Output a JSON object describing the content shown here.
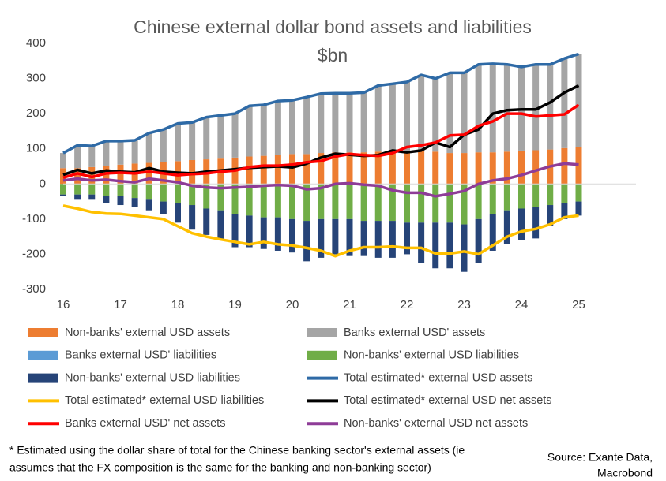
{
  "chart_data": {
    "type": "bar",
    "title": [
      "Chinese external dollar bond assets and liabilities",
      "$bn"
    ],
    "x": [
      16,
      16.25,
      16.5,
      16.75,
      17,
      17.25,
      17.5,
      17.75,
      18,
      18.25,
      18.5,
      18.75,
      19,
      19.25,
      19.5,
      19.75,
      20,
      20.25,
      20.5,
      20.75,
      21,
      21.25,
      21.5,
      21.75,
      22,
      22.25,
      22.5,
      22.75,
      23,
      23.25,
      23.5,
      23.75,
      24,
      24.25,
      24.5,
      24.75,
      25
    ],
    "xlim": [
      16,
      26
    ],
    "xticks": [
      16,
      17,
      18,
      19,
      20,
      21,
      22,
      23,
      24,
      25
    ],
    "ylim": [
      -300,
      400
    ],
    "yticks": [
      -300,
      -200,
      -100,
      0,
      100,
      200,
      300,
      400
    ],
    "series": [
      {
        "name": "Non-banks' external USD assets",
        "type": "bar",
        "color": "#ed7d31",
        "values": [
          45,
          45,
          48,
          52,
          55,
          58,
          60,
          62,
          65,
          68,
          70,
          72,
          75,
          78,
          80,
          82,
          85,
          85,
          88,
          90,
          90,
          90,
          92,
          92,
          95,
          95,
          92,
          88,
          88,
          90,
          90,
          92,
          95,
          96,
          98,
          102,
          104
        ]
      },
      {
        "name": "Banks external USD' assets",
        "type": "bar",
        "color": "#a5a5a5",
        "values": [
          43,
          65,
          60,
          70,
          67,
          66,
          85,
          93,
          107,
          107,
          120,
          123,
          125,
          144,
          145,
          154,
          153,
          162,
          169,
          168,
          168,
          170,
          188,
          193,
          195,
          215,
          208,
          228,
          228,
          250,
          252,
          248,
          238,
          244,
          242,
          255,
          266
        ]
      },
      {
        "name": "Banks external USD' liabilities",
        "type": "bar",
        "color": "#5b9bd5",
        "values": [
          0,
          0,
          0,
          0,
          0,
          0,
          0,
          0,
          0,
          0,
          0,
          0,
          0,
          0,
          0,
          0,
          0,
          0,
          0,
          0,
          0,
          0,
          0,
          0,
          0,
          0,
          0,
          0,
          0,
          0,
          0,
          0,
          0,
          0,
          0,
          0,
          0
        ]
      },
      {
        "name": "Non-banks' external USD liabilities",
        "type": "bar",
        "color": "#70ad47",
        "values": [
          -30,
          -30,
          -30,
          -35,
          -35,
          -40,
          -45,
          -50,
          -55,
          -60,
          -70,
          -75,
          -85,
          -90,
          -95,
          -95,
          -100,
          -105,
          -100,
          -100,
          -100,
          -105,
          -105,
          -105,
          -110,
          -110,
          -110,
          -110,
          -115,
          -100,
          -85,
          -75,
          -70,
          -65,
          -60,
          -55,
          -50
        ]
      },
      {
        "name": "Non-banks' external USD liabilities",
        "type": "bar",
        "color": "#264478",
        "values": [
          -5,
          -15,
          -15,
          -20,
          -25,
          -25,
          -30,
          -35,
          -55,
          -70,
          -75,
          -85,
          -95,
          -90,
          -90,
          -95,
          -95,
          -115,
          -110,
          -100,
          -105,
          -100,
          -105,
          -105,
          -90,
          -115,
          -130,
          -130,
          -135,
          -125,
          -105,
          -95,
          -90,
          -90,
          -60,
          -45,
          -40
        ]
      },
      {
        "name": "Total estimated* external USD assets",
        "type": "line",
        "color": "#2e6aa6",
        "values": [
          88,
          110,
          108,
          122,
          122,
          124,
          145,
          155,
          172,
          175,
          190,
          195,
          200,
          222,
          225,
          236,
          238,
          247,
          257,
          258,
          258,
          260,
          280,
          285,
          290,
          310,
          300,
          316,
          316,
          340,
          342,
          340,
          333,
          340,
          340,
          357,
          370
        ]
      },
      {
        "name": "Total estimated* external USD liabilities",
        "type": "line",
        "color": "#ffc000",
        "values": [
          -62,
          -70,
          -80,
          -84,
          -85,
          -90,
          -95,
          -100,
          -120,
          -140,
          -150,
          -158,
          -165,
          -172,
          -165,
          -172,
          -175,
          -182,
          -190,
          -205,
          -190,
          -180,
          -180,
          -178,
          -182,
          -182,
          -198,
          -198,
          -192,
          -200,
          -175,
          -150,
          -135,
          -128,
          -115,
          -95,
          -90
        ]
      },
      {
        "name": "Total estimated* external USD net assets",
        "type": "line",
        "color": "#000000",
        "values": [
          26,
          40,
          30,
          38,
          35,
          33,
          45,
          35,
          32,
          30,
          35,
          38,
          42,
          46,
          48,
          50,
          47,
          58,
          75,
          86,
          83,
          80,
          82,
          95,
          90,
          95,
          118,
          105,
          140,
          155,
          200,
          210,
          212,
          212,
          232,
          260,
          280
        ]
      },
      {
        "name": "Banks external USD' net assets",
        "type": "line",
        "color": "#ff0000",
        "values": [
          18,
          30,
          20,
          30,
          32,
          30,
          35,
          30,
          25,
          28,
          30,
          35,
          38,
          48,
          52,
          52,
          55,
          62,
          65,
          78,
          85,
          82,
          80,
          88,
          105,
          110,
          118,
          138,
          140,
          165,
          178,
          200,
          200,
          192,
          195,
          198,
          225
        ]
      },
      {
        "name": "Non-banks' external USD net assets",
        "type": "line",
        "color": "#8e3c97",
        "values": [
          10,
          15,
          10,
          12,
          8,
          5,
          15,
          10,
          5,
          -5,
          -10,
          -12,
          -10,
          -8,
          -5,
          -3,
          -5,
          -15,
          -12,
          0,
          2,
          -2,
          -5,
          -18,
          -25,
          -25,
          -35,
          -28,
          -20,
          0,
          10,
          15,
          25,
          38,
          50,
          58,
          55
        ]
      }
    ],
    "footnote": [
      "* Estimated using the dollar share of total for the Chinese banking sector's external assets (ie",
      "assumes that the FX composition is the same for the banking and non-banking sector)"
    ],
    "source": [
      "Source: Exante Data,",
      "Macrobond"
    ]
  }
}
